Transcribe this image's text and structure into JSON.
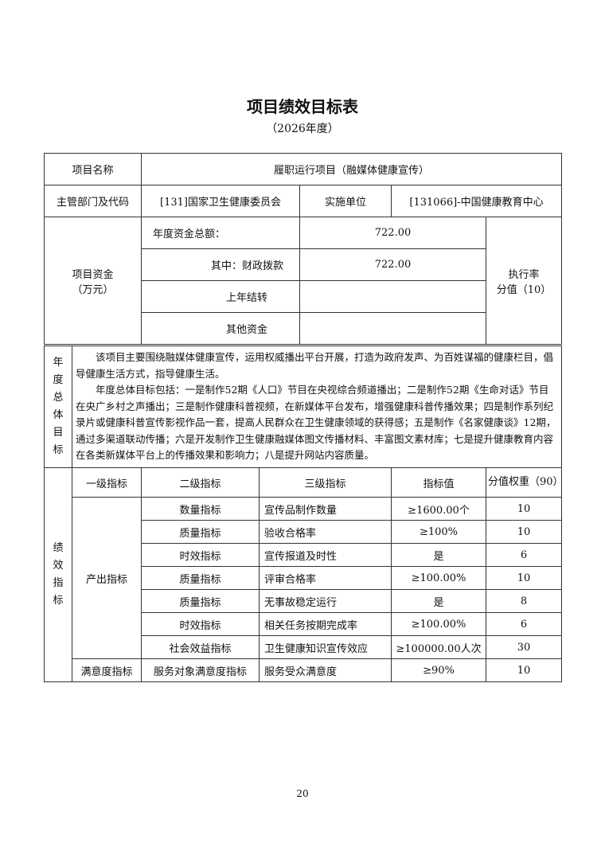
{
  "title": "项目绩效目标表",
  "subtitle": "（2026年度）",
  "project": {
    "name_label": "项目名称",
    "name": "履职运行项目（融媒体健康宣传）",
    "dept_label": "主管部门及代码",
    "dept": "[131]国家卫生健康委员会",
    "unit_label": "实施单位",
    "unit": "[131066]-中国健康教育中心",
    "funds_label": "项目资金",
    "funds_unit": "（万元）",
    "total_label": "年度资金总额：",
    "total": "722.00",
    "fiscal_label": "其中：财政拨款",
    "fiscal": "722.00",
    "carryover_label": "上年结转",
    "carryover": "",
    "other_label": "其他资金",
    "other": "",
    "rate_label": "执行率",
    "rate_score": "分值（10）"
  },
  "goal": {
    "label": "年度总体目标",
    "p1": "该项目主要围绕融媒体健康宣传，运用权威播出平台开展，打造为政府发声、为百姓谋福的健康栏目，倡导健康生活方式，指导健康生活。",
    "p2": "年度总体目标包括：一是制作52期《人口》节目在央视综合频道播出；二是制作52期《生命对话》节目在央广乡村之声播出；三是制作健康科普视频，在新媒体平台发布，增强健康科普传播效果；四是制作系列纪录片或健康科普宣传影视作品一套，提高人民群众在卫生健康领域的获得感；五是制作《名家健康谈》12期，通过多渠道联动传播；六是开发制作卫生健康融媒体图文传播材料、丰富图文素材库；七是提升健康教育内容在各类新媒体平台上的传播效果和影响力；八是提升网站内容质量。"
  },
  "indicators": {
    "label": "绩效指标",
    "headers": [
      "一级指标",
      "二级指标",
      "三级指标",
      "指标值",
      "分值权重（90）"
    ],
    "output_label": "产出指标",
    "rows": [
      [
        "数量指标",
        "宣传品制作数量",
        "≥1600.00个",
        "10"
      ],
      [
        "质量指标",
        "验收合格率",
        "≥100%",
        "10"
      ],
      [
        "时效指标",
        "宣传报道及时性",
        "是",
        "6"
      ],
      [
        "质量指标",
        "评审合格率",
        "≥100.00%",
        "10"
      ],
      [
        "质量指标",
        "无事故稳定运行",
        "是",
        "8"
      ],
      [
        "时效指标",
        "相关任务按期完成率",
        "≥100.00%",
        "6"
      ],
      [
        "社会效益指标",
        "卫生健康知识宣传效应",
        "≥100000.00人次",
        "30"
      ]
    ],
    "satisfaction": [
      "满意度指标",
      "服务对象满意度指标",
      "服务受众满意度",
      "≥90%",
      "10"
    ]
  },
  "page_number": "20"
}
